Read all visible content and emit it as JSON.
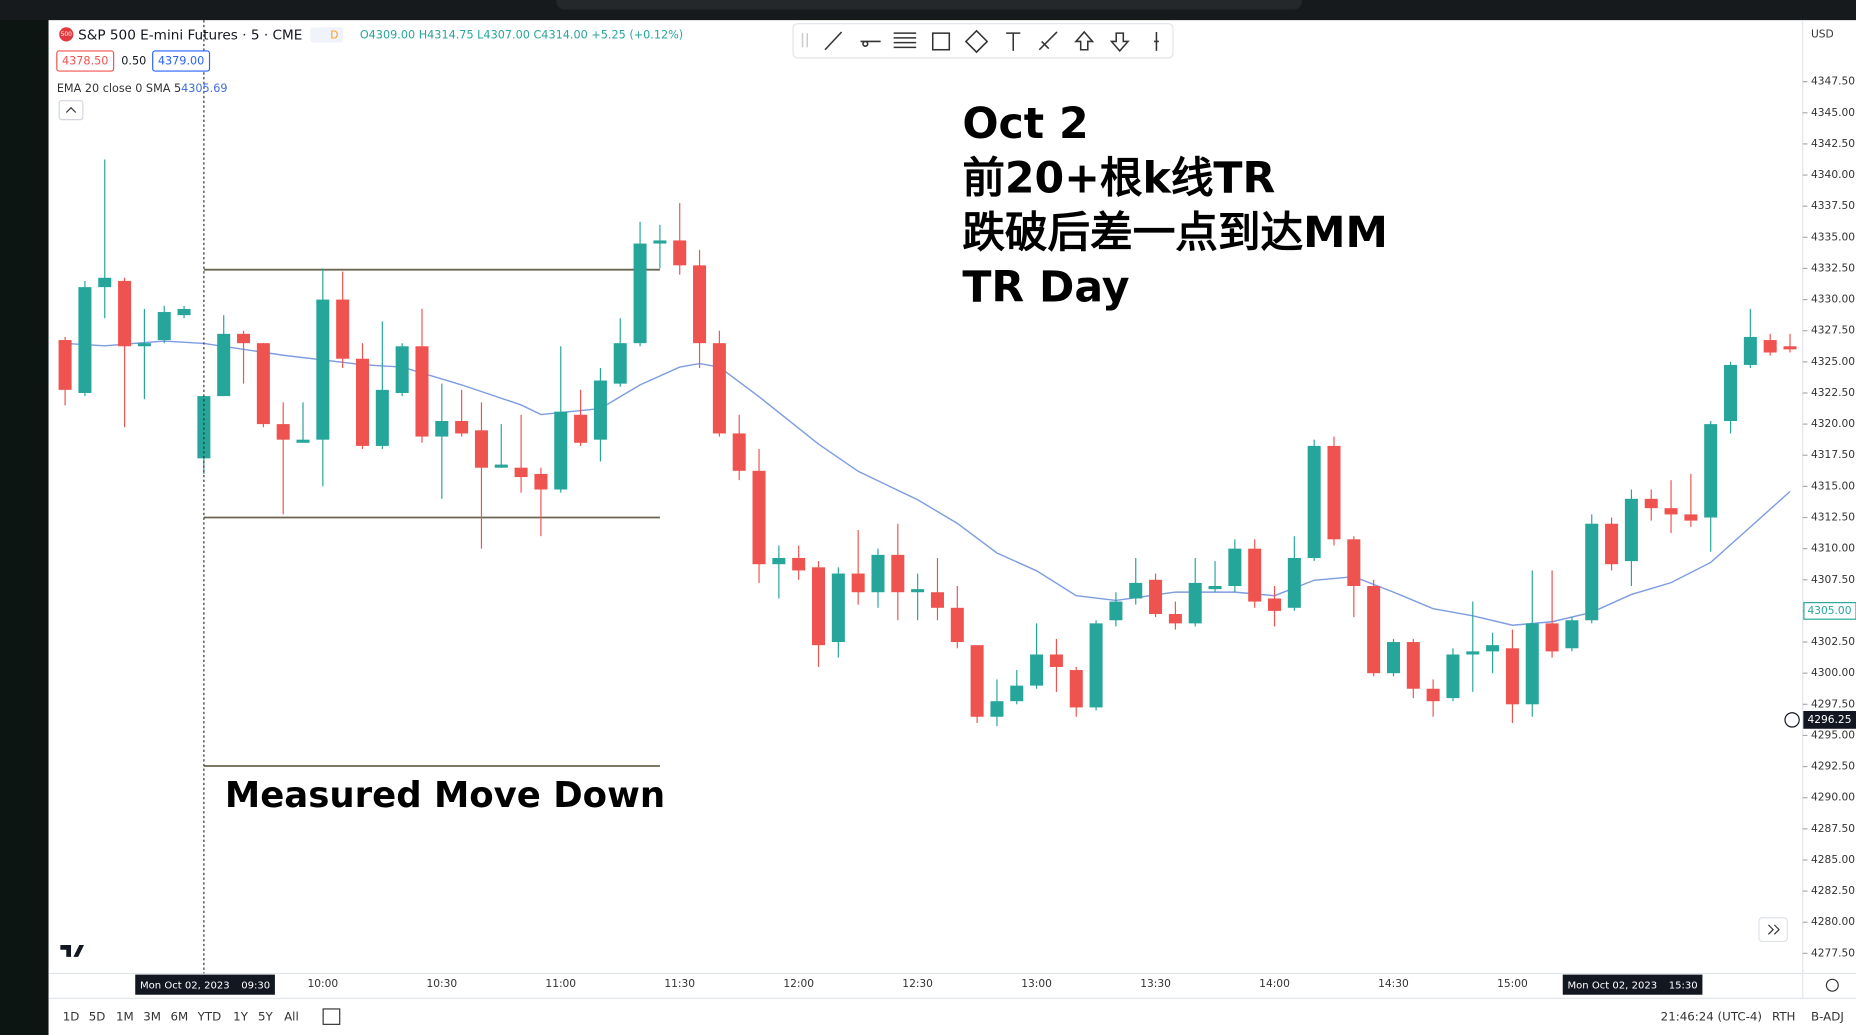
{
  "ui": {
    "logo": "500",
    "symbol": "S&P 500 E-mini Futures · 5 · CME",
    "status": "D",
    "ohlc": [
      "O4309.00",
      "H4314.75",
      "L4307.00",
      "C4314.00",
      "+5.25 (+0.12%)"
    ],
    "bid": "4378.50",
    "spread": "0.50",
    "ask": "4379.00",
    "indicator": "EMA 20 close 0 SMA 5",
    "indicator_value": "4305.69",
    "currency": "USD",
    "ranges": [
      "1D",
      "5D",
      "1M",
      "3M",
      "6M",
      "YTD",
      "1Y",
      "5Y",
      "All"
    ],
    "clock": "21:46:24 (UTC-4)",
    "session": "RTH",
    "adjust": "B-ADJ"
  },
  "chart_data": {
    "type": "candlestick",
    "up_color": "#26a69a",
    "down_color": "#ef5350",
    "annotations": [
      "Oct 2",
      "前20+根k线TR",
      "跌破后差一点到达MM",
      "TR Day",
      "Measured Move Down"
    ],
    "x": [
      "08:55",
      "09:00",
      "09:05",
      "09:10",
      "09:15",
      "09:20",
      "09:25",
      "09:30",
      "09:35",
      "09:40",
      "09:45",
      "09:50",
      "09:55",
      "10:00",
      "10:05",
      "10:10",
      "10:15",
      "10:20",
      "10:25",
      "10:30",
      "10:35",
      "10:40",
      "10:45",
      "10:50",
      "10:55",
      "11:00",
      "11:05",
      "11:10",
      "11:15",
      "11:20",
      "11:25",
      "11:30",
      "11:35",
      "11:40",
      "11:45",
      "11:50",
      "11:55",
      "12:00",
      "12:05",
      "12:10",
      "12:15",
      "12:20",
      "12:25",
      "12:30",
      "12:35",
      "12:40",
      "12:45",
      "12:50",
      "12:55",
      "13:00",
      "13:05",
      "13:10",
      "13:15",
      "13:20",
      "13:25",
      "13:30",
      "13:35",
      "13:40",
      "13:45",
      "13:50",
      "13:55",
      "14:00",
      "14:05",
      "14:10",
      "14:15",
      "14:20",
      "14:25",
      "14:30",
      "14:35",
      "14:40",
      "14:45",
      "14:50",
      "14:55",
      "15:00",
      "15:05",
      "15:10",
      "15:15",
      "15:20",
      "15:25",
      "15:30",
      "15:35",
      "15:40",
      "15:45",
      "15:50",
      "15:55",
      "16:00",
      "16:05",
      "16:10"
    ],
    "open": [
      4326.75,
      4322.5,
      4331,
      4331.5,
      4326.25,
      4326.75,
      4328.75,
      4317.25,
      4322.25,
      4327.25,
      4326.5,
      4320,
      4318.5,
      4318.75,
      4330,
      4325.25,
      4318.25,
      4322.5,
      4326.25,
      4319,
      4320.25,
      4319.5,
      4316.5,
      4316.5,
      4316,
      4314.75,
      4320.75,
      4318.75,
      4323.25,
      4326.5,
      4334.5,
      4334.75,
      4332.75,
      4326.5,
      4319.25,
      4316.25,
      4308.75,
      4309.25,
      4308.5,
      4302.5,
      4308,
      4306.5,
      4309.5,
      4306.5,
      4306.5,
      4305.25,
      4302.25,
      4296.5,
      4297.75,
      4299,
      4301.5,
      4300.25,
      4297.25,
      4304.25,
      4306,
      4307.5,
      4304.75,
      4304,
      4306.75,
      4307,
      4310,
      4306,
      4305.25,
      4309.25,
      4318.25,
      4310.75,
      4307,
      4300,
      4302.5,
      4298.75,
      4298,
      4301.5,
      4301.75,
      4302,
      4297.5,
      4304,
      4302,
      4304.25,
      4312,
      4309,
      4314,
      4313.25,
      4312.75,
      4312.5,
      4320.25,
      4324.75,
      4326.75,
      4326.25
    ],
    "high": [
      4327,
      4331.5,
      4341.25,
      4331.75,
      4329.25,
      4329.5,
      4329.5,
      4322.25,
      4328.75,
      4327.5,
      4326.5,
      4321.75,
      4321.75,
      4332.5,
      4332.25,
      4326.5,
      4328.25,
      4326.5,
      4329.25,
      4323.25,
      4322.75,
      4321.75,
      4320,
      4320.75,
      4316.5,
      4326.25,
      4322.75,
      4324.5,
      4328.5,
      4336.25,
      4336,
      4337.75,
      4334,
      4327.5,
      4320.75,
      4318,
      4310.25,
      4310.25,
      4309,
      4308.5,
      4311.5,
      4310,
      4312,
      4308,
      4309.25,
      4307,
      4302.25,
      4299.5,
      4300.25,
      4304,
      4302.75,
      4300.5,
      4304.25,
      4306.5,
      4309.25,
      4308,
      4305.75,
      4309.25,
      4309,
      4310.75,
      4310.75,
      4307,
      4311,
      4318.75,
      4319,
      4311,
      4307.5,
      4302.75,
      4302.75,
      4299.5,
      4302,
      4305.75,
      4303.25,
      4303.5,
      4308.25,
      4308.25,
      4304.5,
      4312.75,
      4312.5,
      4314.75,
      4314.75,
      4315.5,
      4316,
      4320.25,
      4325,
      4329.25,
      4327.25,
      4327.25
    ],
    "low": [
      4321.5,
      4322.25,
      4328.5,
      4319.75,
      4322,
      4326.5,
      4328.5,
      4316,
      4322.25,
      4323.25,
      4319.75,
      4312.75,
      4318.5,
      4315,
      4324.5,
      4318,
      4318,
      4322.25,
      4318.5,
      4314,
      4319,
      4310,
      4316.5,
      4314.5,
      4311,
      4314.5,
      4318.25,
      4317,
      4323,
      4326.25,
      4332.5,
      4332,
      4324.5,
      4319,
      4315.5,
      4307.25,
      4306,
      4307.5,
      4300.5,
      4301.25,
      4305.5,
      4305.25,
      4304.25,
      4304.25,
      4304.25,
      4302,
      4296,
      4295.75,
      4297.5,
      4298.75,
      4298.5,
      4296.5,
      4297,
      4303.75,
      4305.5,
      4304.5,
      4303.5,
      4303.75,
      4306.5,
      4306.5,
      4305.25,
      4303.75,
      4305,
      4309,
      4310.25,
      4304.5,
      4299.75,
      4299.75,
      4298,
      4296.5,
      4297.75,
      4298.5,
      4300,
      4296,
      4296.5,
      4301.25,
      4301.75,
      4304,
      4308.25,
      4307,
      4312.25,
      4311.25,
      4311.75,
      4309.75,
      4319.25,
      4324.5,
      4325.5,
      4325.75
    ],
    "close": [
      4322.75,
      4331,
      4331.75,
      4326.25,
      4326.5,
      4329,
      4329.25,
      4322.25,
      4327.25,
      4326.5,
      4320,
      4318.75,
      4318.75,
      4330,
      4325.25,
      4318.25,
      4322.75,
      4326.25,
      4319,
      4320.25,
      4319.25,
      4316.5,
      4316.75,
      4315.75,
      4314.75,
      4321,
      4318.5,
      4323.5,
      4326.5,
      4334.5,
      4334.75,
      4332.75,
      4326.5,
      4319.25,
      4316.25,
      4308.75,
      4309.25,
      4308.25,
      4302.25,
      4308,
      4306.5,
      4309.5,
      4306.5,
      4306.75,
      4305.25,
      4302.5,
      4296.5,
      4297.75,
      4299,
      4301.5,
      4300.5,
      4297.25,
      4304,
      4305.75,
      4307.25,
      4304.75,
      4304,
      4307.25,
      4307,
      4310,
      4305.75,
      4305,
      4309.25,
      4318.25,
      4310.75,
      4307,
      4300,
      4302.5,
      4298.75,
      4297.75,
      4301.5,
      4301.75,
      4302.25,
      4297.5,
      4304,
      4301.75,
      4304.25,
      4312,
      4308.75,
      4314,
      4313.25,
      4312.75,
      4312.25,
      4320,
      4324.75,
      4327,
      4325.75,
      4326
    ],
    "ema": {
      "color": "#7e9ce0",
      "x": [
        "08:55",
        "09:05",
        "09:20",
        "09:30",
        "09:50",
        "10:10",
        "10:20",
        "10:35",
        "10:50",
        "10:55",
        "11:10",
        "11:20",
        "11:30",
        "11:35",
        "11:40",
        "11:50",
        "12:05",
        "12:15",
        "12:30",
        "12:40",
        "12:50",
        "13:00",
        "13:10",
        "13:20",
        "13:35",
        "13:50",
        "14:00",
        "14:10",
        "14:20",
        "14:30",
        "14:40",
        "14:50",
        "15:00",
        "15:10",
        "15:20",
        "15:30",
        "15:40",
        "15:50",
        "16:00",
        "16:10"
      ],
      "values": [
        4326.48,
        4326.29,
        4326.67,
        4326.48,
        4325.53,
        4324.77,
        4324.58,
        4323.15,
        4321.54,
        4320.77,
        4321.25,
        4323.15,
        4324.58,
        4324.86,
        4324.58,
        4322.2,
        4318.4,
        4316.21,
        4313.93,
        4312.03,
        4309.65,
        4308.22,
        4306.22,
        4305.84,
        4306.51,
        4306.51,
        4306.22,
        4307.46,
        4307.75,
        4306.51,
        4305.18,
        4304.61,
        4303.85,
        4304.13,
        4304.89,
        4306.32,
        4307.27,
        4308.89,
        4311.74,
        4314.59
      ]
    },
    "drawings": [
      {
        "price": 4332.4,
        "from": "09:30",
        "to": "11:25"
      },
      {
        "price": 4312.5,
        "from": "09:30",
        "to": "11:25"
      },
      {
        "price": 4292.55,
        "from": "09:30",
        "to": "11:25"
      }
    ],
    "crosshairs": [
      {
        "date": "Mon Oct 02, 2023",
        "time": "09:30"
      },
      {
        "date": "Mon Oct 02, 2023",
        "time": "15:30"
      }
    ],
    "price_markers": [
      {
        "value": 4305,
        "label": "4305.00"
      },
      {
        "value": 4296.25,
        "label": "4296.25"
      }
    ],
    "xticks": [
      "10:00",
      "10:30",
      "11:00",
      "11:30",
      "12:00",
      "12:30",
      "13:00",
      "13:30",
      "14:00",
      "14:30",
      "15:00"
    ],
    "ylim": [
      4275.89,
      4352.44
    ],
    "yticks": [
      {
        "value": 4277.5,
        "label": "4277.50"
      },
      {
        "value": 4280,
        "label": "4280.00"
      },
      {
        "value": 4282.5,
        "label": "4282.50"
      },
      {
        "value": 4285,
        "label": "4285.00"
      },
      {
        "value": 4287.5,
        "label": "4287.50"
      },
      {
        "value": 4290,
        "label": "4290.00"
      },
      {
        "value": 4292.5,
        "label": "4292.50"
      },
      {
        "value": 4295,
        "label": "4295.00"
      },
      {
        "value": 4297.5,
        "label": "4297.50"
      },
      {
        "value": 4300,
        "label": "4300.00"
      },
      {
        "value": 4302.5,
        "label": "4302.50"
      },
      {
        "value": 4305,
        "label": "4305.00"
      },
      {
        "value": 4307.5,
        "label": "4307.50"
      },
      {
        "value": 4310,
        "label": "4310.00"
      },
      {
        "value": 4312.5,
        "label": "4312.50"
      },
      {
        "value": 4315,
        "label": "4315.00"
      },
      {
        "value": 4317.5,
        "label": "4317.50"
      },
      {
        "value": 4320,
        "label": "4320.00"
      },
      {
        "value": 4322.5,
        "label": "4322.50"
      },
      {
        "value": 4325,
        "label": "4325.00"
      },
      {
        "value": 4327.5,
        "label": "4327.50"
      },
      {
        "value": 4330,
        "label": "4330.00"
      },
      {
        "value": 4332.5,
        "label": "4332.50"
      },
      {
        "value": 4335,
        "label": "4335.00"
      },
      {
        "value": 4337.5,
        "label": "4337.50"
      },
      {
        "value": 4340,
        "label": "4340.00"
      },
      {
        "value": 4342.5,
        "label": "4342.50"
      },
      {
        "value": 4345,
        "label": "4345.00"
      },
      {
        "value": 4347.5,
        "label": "4347.50"
      }
    ]
  }
}
